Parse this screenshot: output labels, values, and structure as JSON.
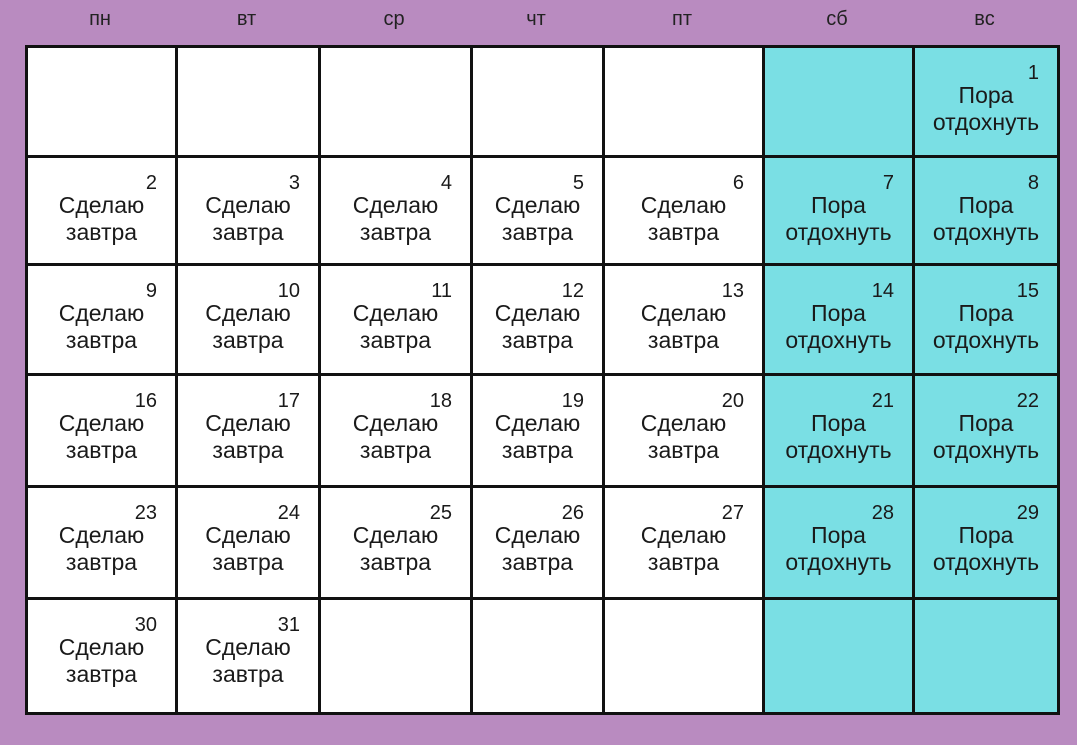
{
  "colors": {
    "background": "#b98bc0",
    "weekday_cell": "#ffffff",
    "weekend_cell": "#7adfe4",
    "grid_line": "#111111"
  },
  "weekdays": [
    "пн",
    "вт",
    "ср",
    "чт",
    "пт",
    "сб",
    "вс"
  ],
  "weeks": [
    [
      null,
      null,
      null,
      null,
      null,
      null,
      {
        "day": "1",
        "text": "Пора\nотдохнуть"
      }
    ],
    [
      {
        "day": "2",
        "text": "Сделаю\nзавтра"
      },
      {
        "day": "3",
        "text": "Сделаю\nзавтра"
      },
      {
        "day": "4",
        "text": "Сделаю\nзавтра"
      },
      {
        "day": "5",
        "text": "Сделаю\nзавтра"
      },
      {
        "day": "6",
        "text": "Сделаю\nзавтра"
      },
      {
        "day": "7",
        "text": "Пора\nотдохнуть"
      },
      {
        "day": "8",
        "text": "Пора\nотдохнуть"
      }
    ],
    [
      {
        "day": "9",
        "text": "Сделаю\nзавтра"
      },
      {
        "day": "10",
        "text": "Сделаю\nзавтра"
      },
      {
        "day": "11",
        "text": "Сделаю\nзавтра"
      },
      {
        "day": "12",
        "text": "Сделаю\nзавтра"
      },
      {
        "day": "13",
        "text": "Сделаю\nзавтра"
      },
      {
        "day": "14",
        "text": "Пора\nотдохнуть"
      },
      {
        "day": "15",
        "text": "Пора\nотдохнуть"
      }
    ],
    [
      {
        "day": "16",
        "text": "Сделаю\nзавтра"
      },
      {
        "day": "17",
        "text": "Сделаю\nзавтра"
      },
      {
        "day": "18",
        "text": "Сделаю\nзавтра"
      },
      {
        "day": "19",
        "text": "Сделаю\nзавтра"
      },
      {
        "day": "20",
        "text": "Сделаю\nзавтра"
      },
      {
        "day": "21",
        "text": "Пора\nотдохнуть"
      },
      {
        "day": "22",
        "text": "Пора\nотдохнуть"
      }
    ],
    [
      {
        "day": "23",
        "text": "Сделаю\nзавтра"
      },
      {
        "day": "24",
        "text": "Сделаю\nзавтра"
      },
      {
        "day": "25",
        "text": "Сделаю\nзавтра"
      },
      {
        "day": "26",
        "text": "Сделаю\nзавтра"
      },
      {
        "day": "27",
        "text": "Сделаю\nзавтра"
      },
      {
        "day": "28",
        "text": "Пора\nотдохнуть"
      },
      {
        "day": "29",
        "text": "Пора\nотдохнуть"
      }
    ],
    [
      {
        "day": "30",
        "text": "Сделаю\nзавтра"
      },
      {
        "day": "31",
        "text": "Сделаю\nзавтра"
      },
      null,
      null,
      null,
      null,
      null
    ]
  ]
}
